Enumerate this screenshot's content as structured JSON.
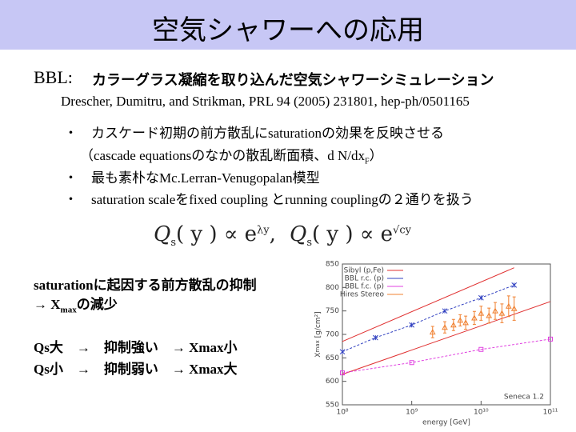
{
  "header": {
    "title": "空気シャワーへの応用"
  },
  "intro": {
    "label": "BBL:",
    "title": "カラーグラス凝縮を取り込んだ空気シャワーシミュレーション",
    "reference": "Drescher, Dumitru, and Strikman, PRL 94 (2005) 231801, hep-ph/0501165"
  },
  "bullets": [
    {
      "marker": "・",
      "text": "カスケード初期の前方散乱にsaturationの効果を反映させる"
    },
    {
      "text": "（cascade equationsのなかの散乱断面積、d N/dx",
      "sub": "F",
      "tail": "）"
    },
    {
      "marker": "・",
      "text": "最も素朴なMc.Lerran-Venugopalan模型"
    },
    {
      "marker": "・",
      "text": "saturation scaleをfixed coupling とrunning couplingの２通りを扱う"
    }
  ],
  "formulas": [
    {
      "base": "Q",
      "sub": "s",
      "arg": "( y ) ∝ e",
      "exp": "λy",
      "sep": ","
    },
    {
      "base": "Q",
      "sub": "s",
      "arg": "( y ) ∝ e",
      "exp": "√cy"
    }
  ],
  "conclusion": {
    "line1": "saturationに起因する前方散乱の抑制",
    "arrow": "→ X",
    "sub": "max",
    "tail": "の減少",
    "row1": "Qs大　→　抑制強い　→ Xmax小",
    "row2": "Qs小　→　抑制弱い　→ Xmax大"
  },
  "chart": {
    "type": "line",
    "xlabel": "energy [GeV]",
    "ylabel": "X",
    "ylabel_sub": "max",
    "ylabel_unit": " [g/cm²]",
    "annotation": "Seneca 1.2",
    "xlog": true,
    "xlim": [
      100000000,
      100000000000
    ],
    "xticks": [
      {
        "value": 100000000,
        "label": "10⁸"
      },
      {
        "value": 1000000000,
        "label": "10⁹"
      },
      {
        "value": 10000000000,
        "label": "10¹⁰"
      },
      {
        "value": 100000000000,
        "label": "10¹¹"
      }
    ],
    "ylim": [
      550,
      850
    ],
    "yticks": [
      550,
      600,
      650,
      700,
      750,
      800,
      850
    ],
    "series": [
      {
        "name": "Sibyl (p,Fe)",
        "color": "#e03030",
        "lines": [
          {
            "x": [
              100000000,
              30000000000
            ],
            "values": [
              685,
              842
            ]
          },
          {
            "x": [
              100000000,
              100000000000
            ],
            "values": [
              615,
              770
            ]
          }
        ]
      },
      {
        "name": "BBL r.c. (p)",
        "color": "#3040c0",
        "x": [
          100000000,
          300000000,
          1000000000,
          3000000000,
          10000000000,
          30000000000
        ],
        "values": [
          663,
          693,
          720,
          750,
          778,
          805
        ]
      },
      {
        "name": "BBL f.c. (p)",
        "color": "#e040e0",
        "x": [
          100000000,
          1000000000,
          10000000000,
          100000000000
        ],
        "values": [
          618,
          640,
          668,
          690
        ]
      },
      {
        "name": "Hires Stereo",
        "color": "#f08030",
        "x": [
          2000000000,
          3000000000,
          4000000000,
          5000000000,
          6000000000,
          8000000000,
          10000000000,
          13000000000,
          16000000000,
          20000000000,
          25000000000,
          30000000000
        ],
        "values": [
          705,
          715,
          720,
          730,
          725,
          735,
          745,
          740,
          750,
          745,
          760,
          755
        ],
        "errors": [
          12,
          12,
          12,
          12,
          14,
          14,
          15,
          16,
          18,
          20,
          22,
          25
        ]
      }
    ]
  }
}
